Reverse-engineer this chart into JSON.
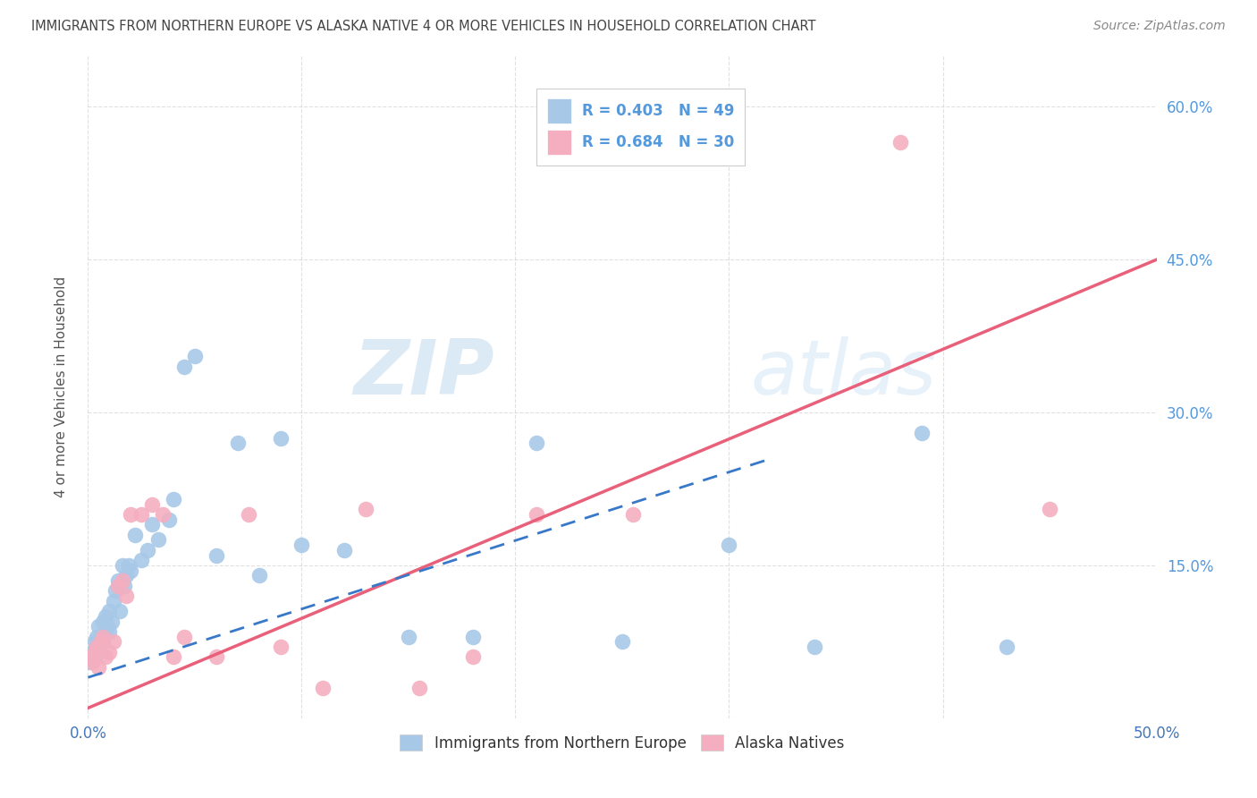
{
  "title": "IMMIGRANTS FROM NORTHERN EUROPE VS ALASKA NATIVE 4 OR MORE VEHICLES IN HOUSEHOLD CORRELATION CHART",
  "source": "Source: ZipAtlas.com",
  "ylabel": "4 or more Vehicles in Household",
  "xlim": [
    0.0,
    0.5
  ],
  "ylim": [
    0.0,
    0.65
  ],
  "x_ticks": [
    0.0,
    0.1,
    0.2,
    0.3,
    0.4,
    0.5
  ],
  "x_tick_labels": [
    "0.0%",
    "",
    "",
    "",
    "",
    "50.0%"
  ],
  "y_ticks": [
    0.0,
    0.15,
    0.3,
    0.45,
    0.6
  ],
  "y_tick_labels_right": [
    "",
    "15.0%",
    "30.0%",
    "45.0%",
    "60.0%"
  ],
  "watermark_zip": "ZIP",
  "watermark_atlas": "atlas",
  "series1_color": "#a8c8e8",
  "series2_color": "#f4aec0",
  "series1_label": "Immigrants from Northern Europe",
  "series2_label": "Alaska Natives",
  "blue_line_color": "#3878c8",
  "pink_line_color": "#e8607a",
  "background_color": "#ffffff",
  "grid_color": "#cccccc",
  "title_color": "#444444",
  "right_axis_color": "#5599dd",
  "legend_box_color": "#aaccee",
  "legend_pink_box_color": "#f4aec0",
  "scatter1_x": [
    0.001,
    0.002,
    0.003,
    0.003,
    0.004,
    0.004,
    0.005,
    0.005,
    0.006,
    0.007,
    0.007,
    0.008,
    0.008,
    0.009,
    0.01,
    0.01,
    0.011,
    0.012,
    0.013,
    0.014,
    0.015,
    0.016,
    0.017,
    0.018,
    0.019,
    0.02,
    0.022,
    0.025,
    0.028,
    0.03,
    0.033,
    0.038,
    0.04,
    0.045,
    0.05,
    0.06,
    0.07,
    0.08,
    0.09,
    0.1,
    0.12,
    0.15,
    0.18,
    0.21,
    0.25,
    0.3,
    0.34,
    0.39,
    0.43
  ],
  "scatter1_y": [
    0.055,
    0.065,
    0.06,
    0.075,
    0.07,
    0.08,
    0.065,
    0.09,
    0.08,
    0.075,
    0.095,
    0.085,
    0.1,
    0.09,
    0.105,
    0.085,
    0.095,
    0.115,
    0.125,
    0.135,
    0.105,
    0.15,
    0.13,
    0.14,
    0.15,
    0.145,
    0.18,
    0.155,
    0.165,
    0.19,
    0.175,
    0.195,
    0.215,
    0.345,
    0.355,
    0.16,
    0.27,
    0.14,
    0.275,
    0.17,
    0.165,
    0.08,
    0.08,
    0.27,
    0.075,
    0.17,
    0.07,
    0.28,
    0.07
  ],
  "scatter2_x": [
    0.001,
    0.002,
    0.003,
    0.004,
    0.005,
    0.006,
    0.007,
    0.008,
    0.01,
    0.012,
    0.014,
    0.016,
    0.018,
    0.02,
    0.025,
    0.03,
    0.035,
    0.04,
    0.045,
    0.06,
    0.075,
    0.09,
    0.11,
    0.13,
    0.155,
    0.18,
    0.21,
    0.255,
    0.38,
    0.45
  ],
  "scatter2_y": [
    0.06,
    0.055,
    0.065,
    0.07,
    0.05,
    0.075,
    0.08,
    0.06,
    0.065,
    0.075,
    0.13,
    0.135,
    0.12,
    0.2,
    0.2,
    0.21,
    0.2,
    0.06,
    0.08,
    0.06,
    0.2,
    0.07,
    0.03,
    0.205,
    0.03,
    0.06,
    0.2,
    0.2,
    0.565,
    0.205
  ],
  "blue_line_x0": 0.0,
  "blue_line_y0": 0.04,
  "blue_line_x1": 0.32,
  "blue_line_y1": 0.255,
  "pink_line_x0": 0.0,
  "pink_line_y0": 0.01,
  "pink_line_x1": 0.5,
  "pink_line_y1": 0.45
}
